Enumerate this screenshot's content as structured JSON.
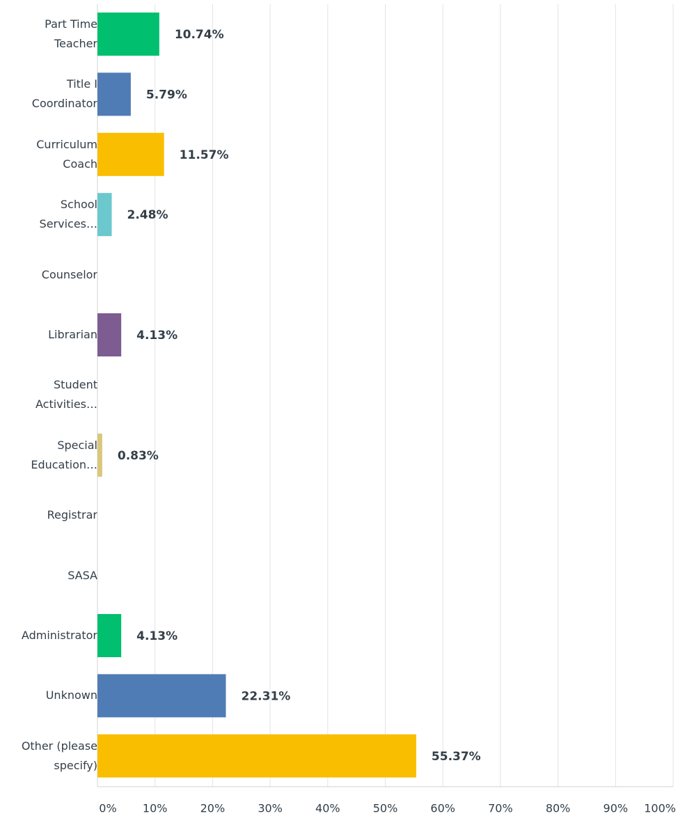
{
  "chart_data": {
    "type": "bar",
    "orientation": "horizontal",
    "categories": [
      "Part Time Teacher",
      "Title I Coordinator",
      "Curriculum Coach",
      "School Services…",
      "Counselor",
      "Librarian",
      "Student Activities…",
      "Special Education…",
      "Registrar",
      "SASA",
      "Administrator",
      "Unknown",
      "Other (please specify)"
    ],
    "values": [
      10.74,
      5.79,
      11.57,
      2.48,
      0,
      4.13,
      0,
      0.83,
      0,
      0,
      4.13,
      22.31,
      55.37
    ],
    "value_labels": [
      "10.74%",
      "5.79%",
      "11.57%",
      "2.48%",
      null,
      "4.13%",
      null,
      "0.83%",
      null,
      null,
      "4.13%",
      "22.31%",
      "55.37%"
    ],
    "colors": [
      "#00bf6f",
      "#507cb6",
      "#f9be00",
      "#6bc8cd",
      "#ff8b4f",
      "#7d5c91",
      "#d25f90",
      "#dac77d",
      "#00bf6f",
      "#507cb6",
      "#00bf6f",
      "#507cb6",
      "#f9be00"
    ],
    "xlim": [
      0,
      100
    ],
    "xticks": [
      {
        "value": 0,
        "label": "0%"
      },
      {
        "value": 10,
        "label": "10%"
      },
      {
        "value": 20,
        "label": "20%"
      },
      {
        "value": 30,
        "label": "30%"
      },
      {
        "value": 40,
        "label": "40%"
      },
      {
        "value": 50,
        "label": "50%"
      },
      {
        "value": 60,
        "label": "60%"
      },
      {
        "value": 70,
        "label": "70%"
      },
      {
        "value": 80,
        "label": "80%"
      },
      {
        "value": 90,
        "label": "90%"
      },
      {
        "value": 100,
        "label": "100%"
      }
    ],
    "grid": true
  }
}
